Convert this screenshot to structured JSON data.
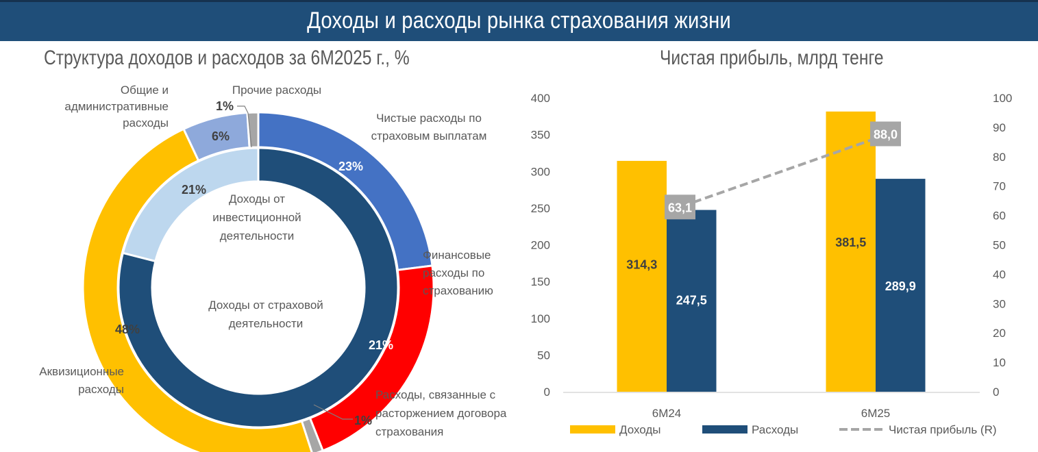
{
  "header": {
    "title": "Доходы и расходы рынка страхования жизни"
  },
  "colors": {
    "header_bg": "#1f4e79",
    "navy": "#1f4e79",
    "yellow": "#ffc000",
    "blue": "#4472c4",
    "red": "#ff0000",
    "light_blue": "#bdd7ee",
    "periwinkle": "#8ea9db",
    "grey": "#a6a6a6"
  },
  "chart_data": [
    {
      "type": "pie",
      "subtype": "double-donut",
      "title": "Структура доходов и расходов за 6М2025 г., %",
      "rings": [
        {
          "name": "Расходы",
          "position": "outer",
          "slices": [
            {
              "label": "Чистые расходы по страховым выплатам",
              "value": 23,
              "value_label": "23%",
              "color": "#4472c4"
            },
            {
              "label": "Финансовые расходы по страхованию",
              "value": 21,
              "value_label": "21%",
              "color": "#ff0000"
            },
            {
              "label": "Расходы, связанные с расторжением договора страхования",
              "value": 1,
              "value_label": "1%",
              "color": "#a6a6a6"
            },
            {
              "label": "Аквизиционные расходы",
              "value": 48,
              "value_label": "48%",
              "color": "#ffc000"
            },
            {
              "label": "Общие и административные расходы",
              "value": 6,
              "value_label": "6%",
              "color": "#8ea9db"
            },
            {
              "label": "Прочие расходы",
              "value": 1,
              "value_label": "1%",
              "color": "#a6a6a6"
            }
          ]
        },
        {
          "name": "Доходы",
          "position": "inner",
          "slices": [
            {
              "label": "Доходы от страховой деятельности",
              "value": 79,
              "value_label": "79%",
              "color": "#1f4e79"
            },
            {
              "label": "Доходы от инвестиционной деятельности",
              "value": 21,
              "value_label": "21%",
              "color": "#bdd7ee"
            }
          ]
        }
      ]
    },
    {
      "type": "bar",
      "title": "Чистая прибыль, млрд тенге",
      "categories": [
        "6M24",
        "6M25"
      ],
      "series": [
        {
          "name": "Доходы",
          "kind": "bar",
          "axis": "left",
          "color": "#ffc000",
          "values": [
            314.3,
            381.5
          ],
          "labels": [
            "314,3",
            "381,5"
          ]
        },
        {
          "name": "Расходы",
          "kind": "bar",
          "axis": "left",
          "color": "#1f4e79",
          "values": [
            247.5,
            289.9
          ],
          "labels": [
            "247,5",
            "289,9"
          ]
        },
        {
          "name": "Чистая прибыль (R)",
          "kind": "line",
          "style": "dashed",
          "axis": "right",
          "color": "#a6a6a6",
          "values": [
            63.1,
            88.0
          ],
          "labels": [
            "63,1",
            "88,0"
          ]
        }
      ],
      "y_left": {
        "min": 0,
        "max": 400,
        "ticks": [
          0,
          50,
          100,
          150,
          200,
          250,
          300,
          350,
          400
        ]
      },
      "y_right": {
        "min": 0,
        "max": 100,
        "ticks": [
          0,
          10,
          20,
          30,
          40,
          50,
          60,
          70,
          80,
          90,
          100
        ]
      },
      "grid": false,
      "legend": "bottom"
    }
  ]
}
